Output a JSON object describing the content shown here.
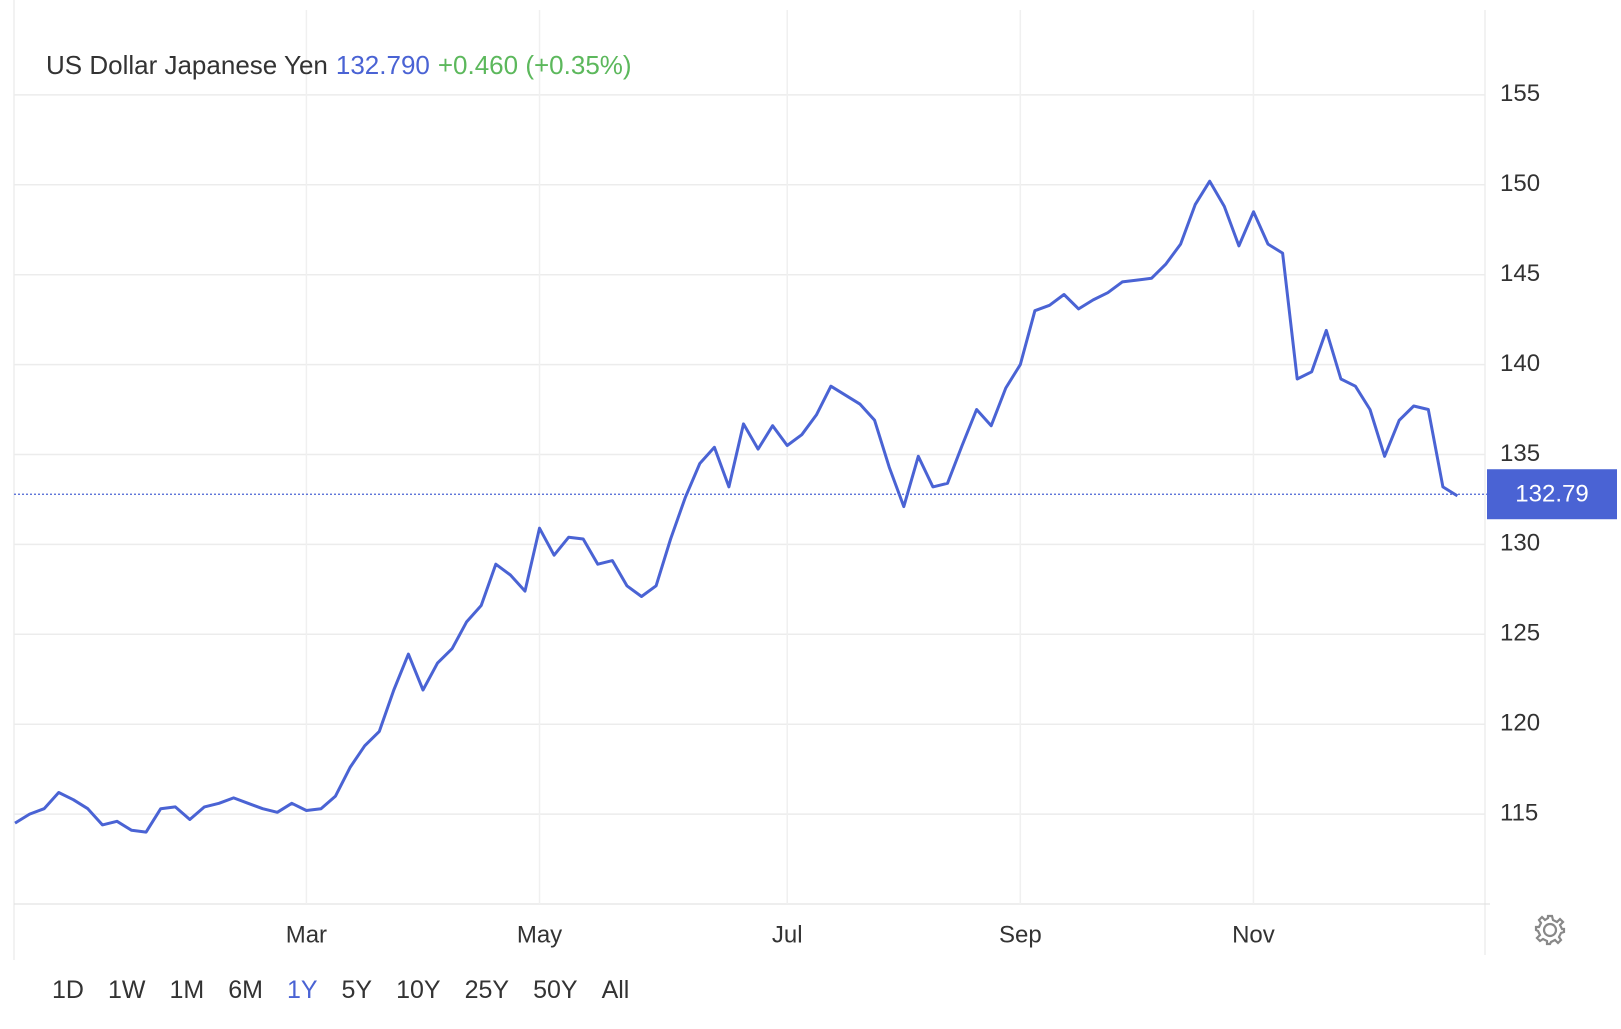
{
  "header": {
    "title": "US Dollar Japanese Yen",
    "price": "132.790",
    "change": "+0.460 (+0.35%)"
  },
  "chart_data": {
    "type": "line",
    "color": "#4a63d4",
    "grid": true,
    "categories": [
      null,
      null,
      null,
      null,
      null,
      null,
      null,
      null,
      null,
      null,
      null,
      null,
      null,
      null,
      null,
      null,
      null,
      null,
      null,
      null,
      "Mar",
      null,
      null,
      null,
      null,
      null,
      null,
      null,
      null,
      null,
      null,
      null,
      null,
      null,
      null,
      null,
      "May",
      null,
      null,
      null,
      null,
      null,
      null,
      null,
      null,
      null,
      null,
      null,
      null,
      null,
      null,
      null,
      null,
      "Jul",
      null,
      null,
      null,
      null,
      null,
      null,
      null,
      null,
      null,
      null,
      null,
      null,
      null,
      null,
      null,
      "Sep",
      null,
      null,
      null,
      null,
      null,
      null,
      null,
      null,
      null,
      null,
      null,
      null,
      null,
      null,
      null,
      "Nov",
      null,
      null,
      null,
      null,
      null,
      null,
      null,
      null,
      null,
      null,
      null,
      null,
      null,
      null
    ],
    "values": [
      114.5,
      115,
      115.3,
      116.2,
      115.8,
      115.3,
      114.4,
      114.6,
      114.1,
      114,
      115.3,
      115.4,
      114.7,
      115.4,
      115.6,
      115.9,
      115.6,
      115.3,
      115.1,
      115.6,
      115.2,
      115.3,
      116,
      117.6,
      118.8,
      119.6,
      121.9,
      123.9,
      121.9,
      123.4,
      124.2,
      125.7,
      126.6,
      128.9,
      128.3,
      127.4,
      130.9,
      129.4,
      130.4,
      130.3,
      128.9,
      129.1,
      127.7,
      127.1,
      127.7,
      130.3,
      132.6,
      134.5,
      135.4,
      133.2,
      136.7,
      135.3,
      136.6,
      135.5,
      136.1,
      137.2,
      138.8,
      138.3,
      137.8,
      136.9,
      134.3,
      132.1,
      134.9,
      133.2,
      133.4,
      135.5,
      137.5,
      136.6,
      138.7,
      140,
      143,
      143.3,
      143.9,
      143.1,
      143.6,
      144,
      144.6,
      144.7,
      144.8,
      145.6,
      146.7,
      148.9,
      150.2,
      148.8,
      146.6,
      148.5,
      146.7,
      146.2,
      139.2,
      139.6,
      141.9,
      139.2,
      138.8,
      137.5,
      134.9,
      136.9,
      137.7,
      137.5,
      133.2,
      132.7
    ],
    "last_price": 132.79,
    "ylim": [
      110,
      160
    ],
    "yticks": [
      115,
      120,
      125,
      130,
      135,
      140,
      145,
      150,
      155
    ]
  },
  "ranges": [
    "1D",
    "1W",
    "1M",
    "6M",
    "1Y",
    "5Y",
    "10Y",
    "25Y",
    "50Y",
    "All"
  ],
  "active_range": "1Y"
}
